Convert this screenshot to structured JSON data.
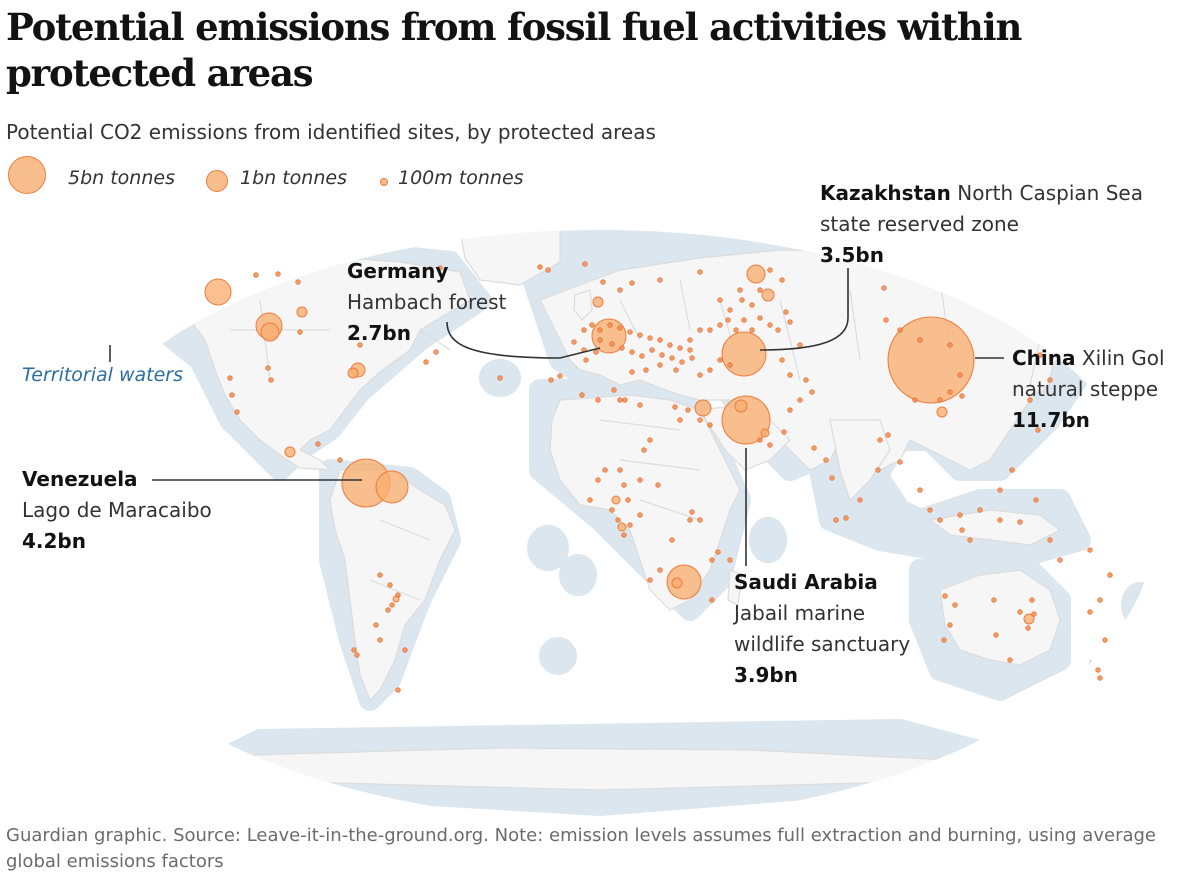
{
  "header": {
    "title": "Potential emissions from fossil fuel activities within protected areas",
    "subtitle": "Potential CO2 emissions from identified sites, by protected areas"
  },
  "legend": {
    "items": [
      {
        "label": "5bn tonnes",
        "value_bn_tonnes": 5
      },
      {
        "label": "1bn tonnes",
        "value_bn_tonnes": 1
      },
      {
        "label": "100m tonnes",
        "value_bn_tonnes": 0.1
      }
    ]
  },
  "map": {
    "territorial_waters_label": "Territorial waters",
    "colors": {
      "land": "#f6f6f6",
      "borders": "#dcdcdc",
      "territorial_waters": "#dbe6ee",
      "bubble_fill": "#f8ae70",
      "bubble_stroke": "#f07a3c",
      "annotation_line": "#333333",
      "territorial_label": "#2a6ea3"
    }
  },
  "annotations": {
    "germany": {
      "country": "Germany",
      "site": "Hambach forest",
      "value": "2.7bn"
    },
    "kazakhstan": {
      "country": "Kazakhstan",
      "site_line1": "North Caspian Sea",
      "site_line2": "state reserved zone",
      "value": "3.5bn"
    },
    "china": {
      "country": "China",
      "site_line1": "Xilin Gol",
      "site_line2": "natural steppe",
      "value": "11.7bn"
    },
    "venezuela": {
      "country": "Venezuela",
      "site": "Lago de Maracaibo",
      "value": "4.2bn"
    },
    "saudi": {
      "country": "Saudi Arabia",
      "site_line1": "Jabail marine",
      "site_line2": "wildlife sanctuary",
      "value": "3.9bn"
    }
  },
  "footer": {
    "text": "Guardian graphic. Source: Leave-it-in-the-ground.org. Note: emission levels assumes full extraction and burning, using average global emissions factors"
  }
}
